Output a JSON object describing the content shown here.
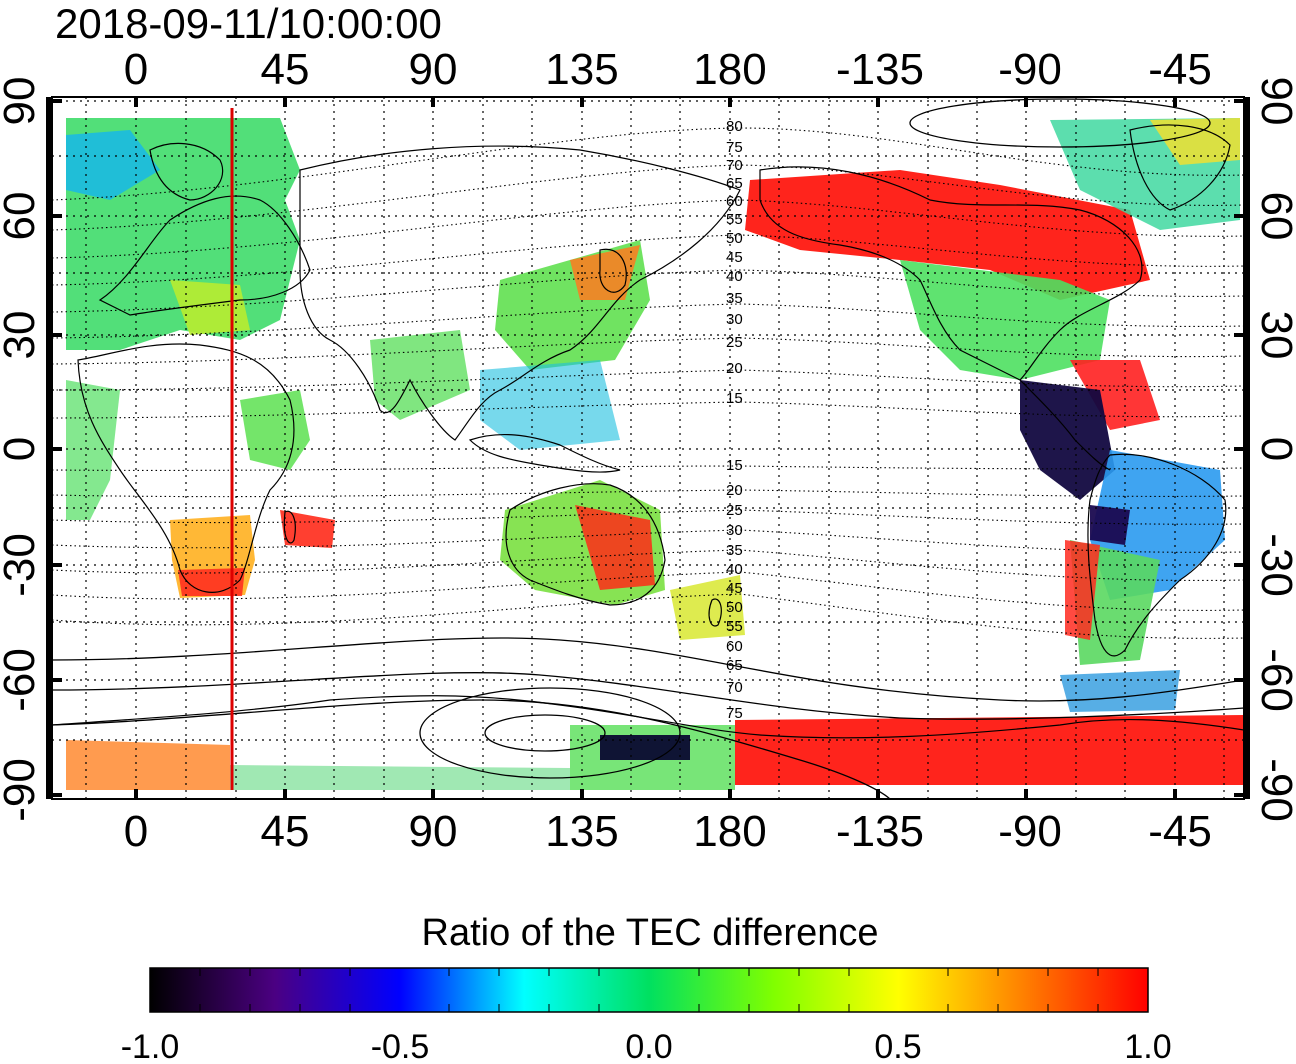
{
  "timestamp": "2018-09-11/10:00:00",
  "map": {
    "lon_ticks_top": [
      "0",
      "45",
      "90",
      "135",
      "180",
      "-135",
      "-90",
      "-45"
    ],
    "lon_ticks_bottom": [
      "0",
      "45",
      "90",
      "135",
      "180",
      "-135",
      "-90",
      "-45"
    ],
    "lat_ticks_left": [
      "90",
      "60",
      "30",
      "0",
      "-30",
      "-60",
      "-90"
    ],
    "lat_ticks_right": [
      "90",
      "60",
      "30",
      "0",
      "-30",
      "-60",
      "-90"
    ],
    "contour_labels_north": [
      "80",
      "75",
      "70",
      "65",
      "60",
      "55",
      "50",
      "45",
      "40",
      "35",
      "30",
      "25",
      "20",
      "15"
    ],
    "contour_labels_south": [
      "15",
      "20",
      "25",
      "30",
      "35",
      "40",
      "45",
      "50",
      "55",
      "60",
      "65",
      "70",
      "75"
    ],
    "meridian_marker_color": "#dd0000"
  },
  "colorbar": {
    "title": "Ratio of the TEC difference",
    "ticks": [
      "-1.0",
      "-0.5",
      "0.0",
      "0.5",
      "1.0"
    ],
    "stops": [
      "#000000",
      "#4b0082",
      "#0000ff",
      "#00ffff",
      "#00e060",
      "#80ff00",
      "#ffff00",
      "#ff8000",
      "#ff0000"
    ]
  }
}
